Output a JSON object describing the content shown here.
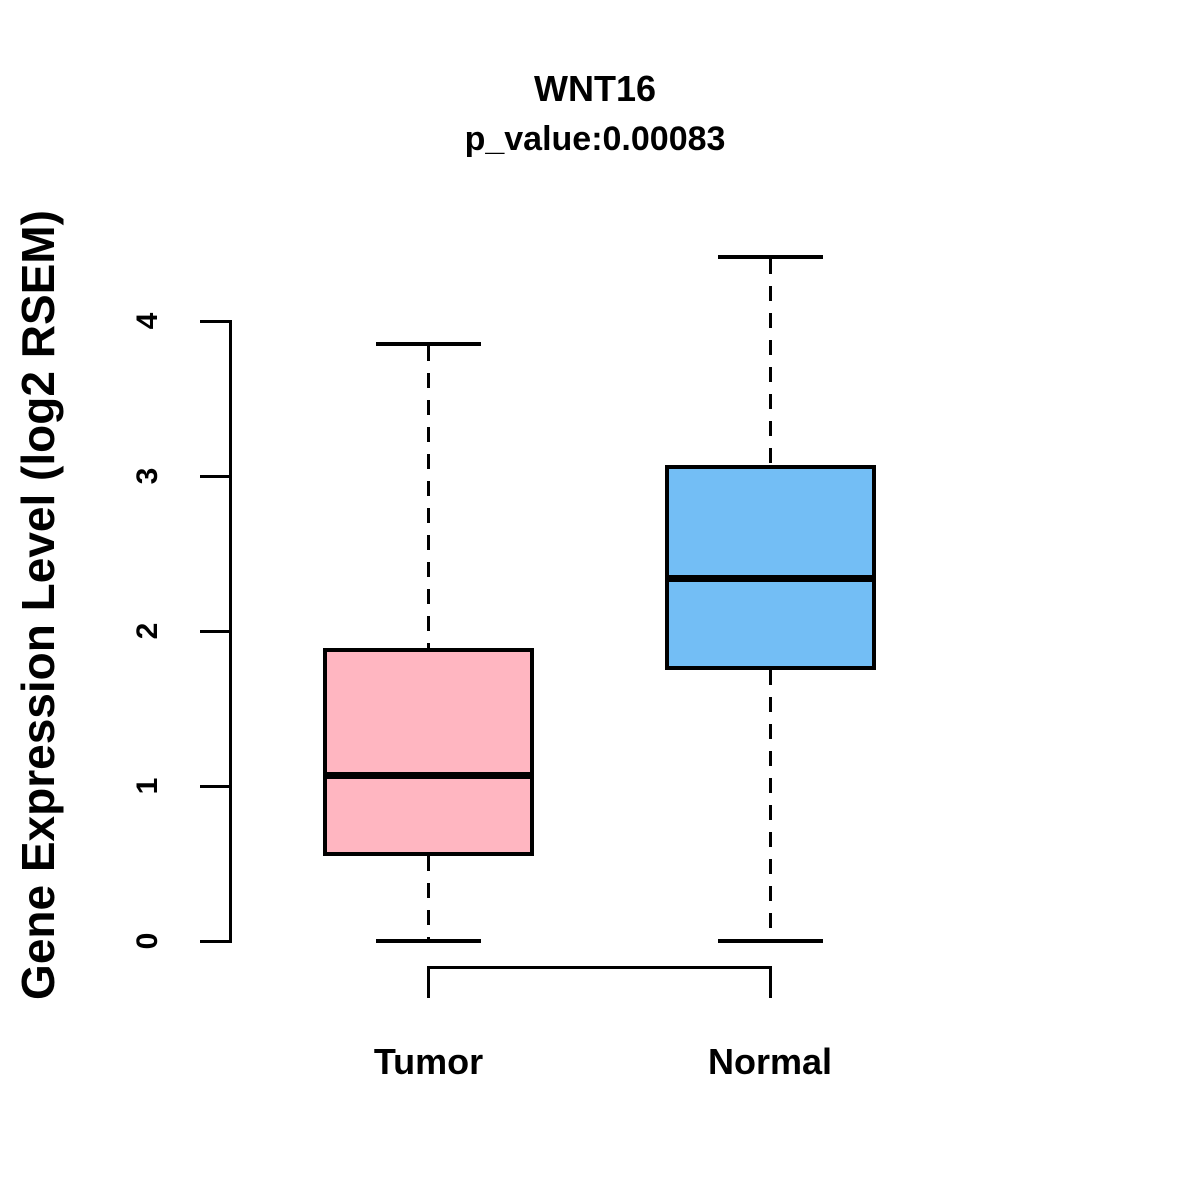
{
  "chart_data": {
    "type": "boxplot",
    "title": "WNT16",
    "subtitle": "p_value:0.00083",
    "gene": "WNT16",
    "p_value": "0.00083",
    "ylabel": "Gene Expression Level (log2 RSEM)",
    "categories": [
      "Tumor",
      "Normal"
    ],
    "yticks": [
      0,
      1,
      2,
      3,
      4
    ],
    "ylim": [
      0,
      4.45
    ],
    "grid": false,
    "legend_position": "none",
    "line_color": "#000000",
    "background_color": "#FFFFFF",
    "series": [
      {
        "name": "Tumor",
        "color": "#FFB6C1",
        "min": 0.0,
        "q1": 0.56,
        "median": 1.07,
        "q3": 1.88,
        "max": 3.85
      },
      {
        "name": "Normal",
        "color": "#73BEF5",
        "min": 0.0,
        "q1": 1.76,
        "median": 2.34,
        "q3": 3.06,
        "max": 4.41
      }
    ]
  }
}
